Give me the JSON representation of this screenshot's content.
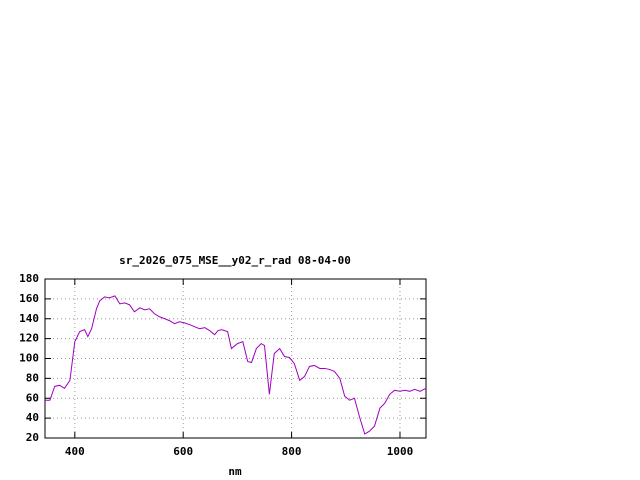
{
  "chart_data": {
    "type": "line",
    "title": "sr_2026_075_MSE__y02_r_rad 08-04-00",
    "x_label": "nm",
    "x": [
      345,
      354,
      363,
      372,
      381,
      391,
      400,
      409,
      418,
      424,
      431,
      440,
      446,
      455,
      464,
      474,
      483,
      492,
      501,
      510,
      520,
      529,
      538,
      547,
      556,
      566,
      575,
      584,
      593,
      602,
      612,
      621,
      630,
      640,
      649,
      658,
      664,
      671,
      682,
      689,
      700,
      710,
      719,
      726,
      735,
      744,
      750,
      759,
      768,
      778,
      787,
      796,
      805,
      815,
      824,
      833,
      842,
      852,
      861,
      870,
      879,
      889,
      898,
      907,
      916,
      926,
      935,
      944,
      953,
      963,
      972,
      981,
      990,
      1000,
      1009,
      1018,
      1027,
      1037,
      1048
    ],
    "series": [
      {
        "name": "sr_2026_075_MSE__y02_r_rad",
        "color": "#a000c0",
        "values": [
          58,
          58,
          72,
          73,
          70,
          78,
          117,
          127,
          129,
          122,
          130,
          150,
          158,
          162,
          161,
          163,
          155,
          156,
          154,
          147,
          151,
          149,
          150,
          145,
          142,
          140,
          138,
          135,
          137,
          136,
          134,
          132,
          130,
          131,
          128,
          124,
          128,
          129,
          127,
          110,
          115,
          117,
          97,
          96,
          110,
          115,
          113,
          64,
          105,
          110,
          102,
          101,
          95,
          78,
          82,
          92,
          93,
          90,
          90,
          89,
          87,
          80,
          62,
          58,
          60,
          40,
          24,
          27,
          32,
          50,
          55,
          64,
          68,
          67,
          68,
          67,
          69,
          67,
          70
        ]
      }
    ],
    "xlim": [
      345,
      1048
    ],
    "ylim": [
      20,
      180
    ],
    "xticks": [
      400,
      600,
      800,
      1000
    ],
    "yticks": [
      20,
      40,
      60,
      80,
      100,
      120,
      140,
      160,
      180
    ],
    "grid": true
  }
}
